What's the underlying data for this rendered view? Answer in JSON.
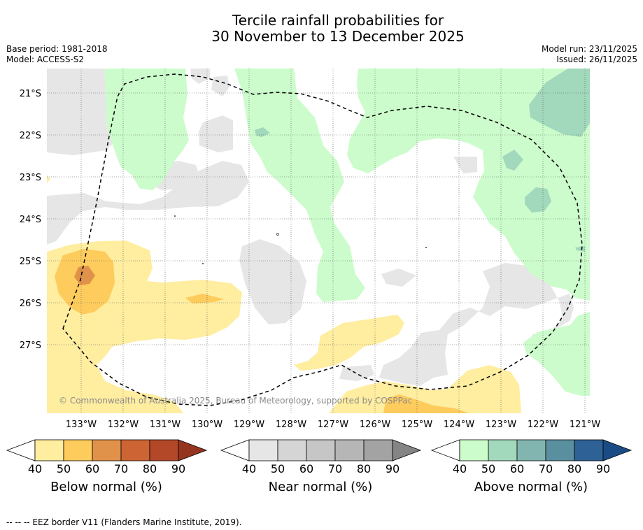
{
  "title_line1": "Tercile rainfall probabilities for",
  "title_line2": "30 November to 13 December 2025",
  "meta_left": {
    "base_period": "Base period: 1981-2018",
    "model": "Model: ACCESS-S2"
  },
  "meta_right": {
    "model_run": "Model run: 23/11/2025",
    "issued": "Issued: 26/11/2025"
  },
  "map": {
    "lat_labels": [
      "21°S",
      "22°S",
      "23°S",
      "24°S",
      "25°S",
      "26°S",
      "27°S"
    ],
    "lon_labels": [
      "133°W",
      "132°W",
      "131°W",
      "130°W",
      "129°W",
      "128°W",
      "127°W",
      "126°W",
      "125°W",
      "124°W",
      "123°W",
      "122°W",
      "121°W"
    ],
    "copyright": "© Commonwealth of Australia 2025, Bureau of Meteorology, supported by COSPPac"
  },
  "legends": [
    {
      "label": "Below normal (%)",
      "ticks": [
        "40",
        "50",
        "60",
        "70",
        "80",
        "90"
      ],
      "colors": [
        "#ffffff",
        "#ffeda0",
        "#fecc5c",
        "#e0924a",
        "#cd6434",
        "#b24828",
        "#953520"
      ]
    },
    {
      "label": "Near normal (%)",
      "ticks": [
        "40",
        "50",
        "60",
        "70",
        "80",
        "90"
      ],
      "colors": [
        "#ffffff",
        "#e6e6e6",
        "#d5d5d5",
        "#c6c6c6",
        "#b6b6b6",
        "#a3a3a3",
        "#848484"
      ]
    },
    {
      "label": "Above normal (%)",
      "ticks": [
        "40",
        "50",
        "60",
        "70",
        "80",
        "90"
      ],
      "colors": [
        "#ffffff",
        "#ccfccc",
        "#a2d8bb",
        "#82b5b0",
        "#5a8f9f",
        "#2e6296",
        "#1a4b85"
      ]
    }
  ],
  "footnote": "-- -- -- EEZ border V11 (Flanders Marine Institute, 2019)."
}
